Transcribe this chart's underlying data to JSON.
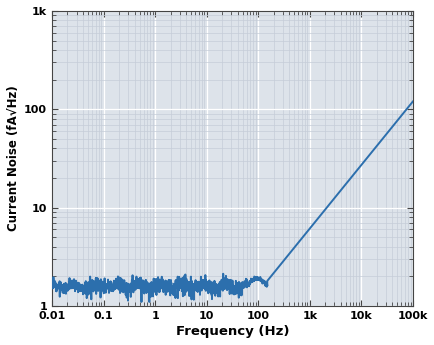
{
  "title": "",
  "xlabel": "Frequency (Hz)",
  "ylabel": "Current Noise (fA√Hz)",
  "xlim": [
    0.01,
    100000
  ],
  "ylim": [
    1,
    1000
  ],
  "line_color": "#2c6fad",
  "line_width": 1.4,
  "plot_bg_color": "#dde3ea",
  "fig_bg_color": "#ffffff",
  "major_grid_color": "#ffffff",
  "minor_grid_color": "#c5cdd8",
  "x_ticks": [
    0.01,
    0.1,
    1,
    10,
    100,
    1000,
    10000,
    100000
  ],
  "x_tick_labels": [
    "0.01",
    "0.1",
    "1",
    "10",
    "100",
    "1k",
    "10k",
    "100k"
  ],
  "y_ticks": [
    1,
    10,
    100,
    1000
  ],
  "y_tick_labels": [
    "1",
    "10",
    "100",
    "1k"
  ],
  "noise_floor_level": 1.6,
  "noise_floor_min": 0.01,
  "noise_floor_max": 60,
  "rise_start": 150,
  "rise_end": 100000,
  "rise_end_val": 120
}
